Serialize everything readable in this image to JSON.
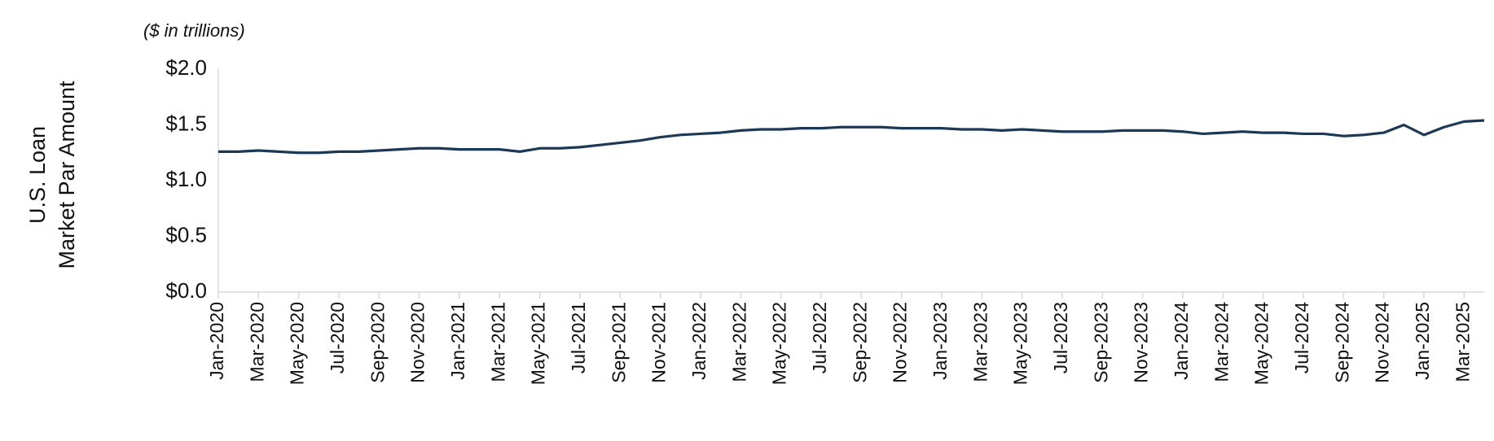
{
  "chart_data": {
    "type": "line",
    "subtitle": "($ in trillions)",
    "ylabel": [
      "U.S. Loan",
      "Market Par Amount"
    ],
    "categories": [
      "Jan-2020",
      null,
      "Mar-2020",
      null,
      "May-2020",
      null,
      "Jul-2020",
      null,
      "Sep-2020",
      null,
      "Nov-2020",
      null,
      "Jan-2021",
      null,
      "Mar-2021",
      null,
      "May-2021",
      null,
      "Jul-2021",
      null,
      "Sep-2021",
      null,
      "Nov-2021",
      null,
      "Jan-2022",
      null,
      "Mar-2022",
      null,
      "May-2022",
      null,
      "Jul-2022",
      null,
      "Sep-2022",
      null,
      "Nov-2022",
      null,
      "Jan-2023",
      null,
      "Mar-2023",
      null,
      "May-2023",
      null,
      "Jul-2023",
      null,
      "Sep-2023",
      null,
      "Nov-2023",
      null,
      "Jan-2024",
      null,
      "Mar-2024",
      null,
      "May-2024",
      null,
      "Jul-2024",
      null,
      "Sep-2024",
      null,
      "Nov-2024",
      null,
      "Jan-2025",
      null,
      "Mar-2025",
      null
    ],
    "series": [
      {
        "color": "#1c3857",
        "values": [
          1.26,
          1.26,
          1.27,
          1.26,
          1.25,
          1.25,
          1.26,
          1.26,
          1.27,
          1.28,
          1.29,
          1.29,
          1.28,
          1.28,
          1.28,
          1.26,
          1.29,
          1.29,
          1.3,
          1.32,
          1.34,
          1.36,
          1.39,
          1.41,
          1.42,
          1.43,
          1.45,
          1.46,
          1.46,
          1.47,
          1.47,
          1.48,
          1.48,
          1.48,
          1.47,
          1.47,
          1.47,
          1.46,
          1.46,
          1.45,
          1.46,
          1.45,
          1.44,
          1.44,
          1.44,
          1.45,
          1.45,
          1.45,
          1.44,
          1.42,
          1.43,
          1.44,
          1.43,
          1.43,
          1.42,
          1.42,
          1.4,
          1.41,
          1.43,
          1.5,
          1.41,
          1.48,
          1.53,
          1.54
        ]
      }
    ],
    "ylim": [
      0,
      2
    ],
    "yticks": [
      {
        "value": 0,
        "label": "$0.0"
      },
      {
        "value": 0.5,
        "label": "$0.5"
      },
      {
        "value": 1,
        "label": "$1.0"
      },
      {
        "value": 1.5,
        "label": "$1.5"
      },
      {
        "value": 2,
        "label": "$2.0"
      }
    ],
    "grid": false
  }
}
